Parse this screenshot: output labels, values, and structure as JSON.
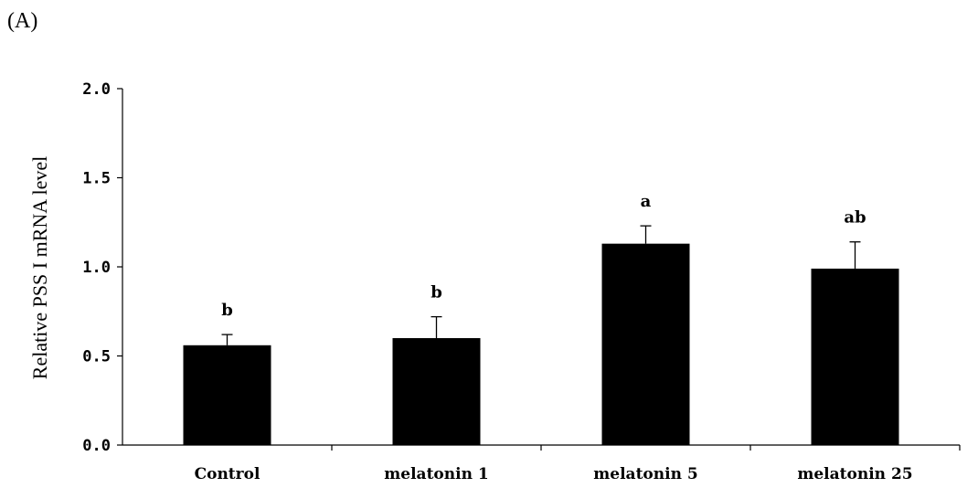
{
  "panel_label": "(A)",
  "chart_data": {
    "type": "bar",
    "categories": [
      "Control",
      "melatonin 1",
      "melatonin 5",
      "melatonin 25"
    ],
    "values": [
      0.56,
      0.6,
      1.13,
      0.99
    ],
    "errors": [
      0.06,
      0.12,
      0.1,
      0.15
    ],
    "significance_labels": [
      "b",
      "b",
      "a",
      "ab"
    ],
    "title": "",
    "xlabel": "",
    "ylabel": "Relative PSS I  mRNA level",
    "ylim": [
      0.0,
      2.0
    ],
    "yticks": [
      "0.0",
      "0.5",
      "1.0",
      "1.5",
      "2.0"
    ],
    "bar_color": "#000000",
    "grid": false,
    "legend": "none"
  }
}
